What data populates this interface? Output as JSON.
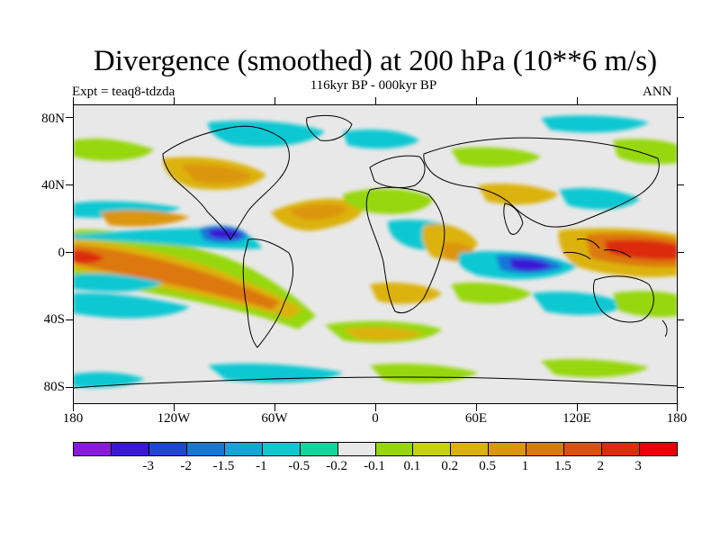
{
  "header": {
    "title": "Divergence (smoothed) at 200 hPa (10**6 m/s)",
    "subtitle": "116kyr BP - 000kyr BP",
    "left_label": "Expt = teaq8-tdzda",
    "right_label": "ANN"
  },
  "map": {
    "lat_labels": [
      "80N",
      "40N",
      "0",
      "40S",
      "80S"
    ],
    "lon_labels": [
      "180",
      "120W",
      "60W",
      "0",
      "60E",
      "120E",
      "180"
    ],
    "background_color": "#e8e8e8"
  },
  "colorbar": {
    "colors": [
      "#8a19e0",
      "#3a19d6",
      "#1e46d2",
      "#1478d6",
      "#10a6d8",
      "#10c8d2",
      "#10d89c",
      "#e8e8e8",
      "#96d70a",
      "#c6d20a",
      "#dcb20a",
      "#dc960a",
      "#dc780a",
      "#dc500a",
      "#dc2c0a",
      "#e6000a"
    ],
    "labels": [
      "-3",
      "-2",
      "-1.5",
      "-1",
      "-0.5",
      "-0.2",
      "-0.1",
      "0.1",
      "0.2",
      "0.5",
      "1",
      "1.5",
      "2",
      "3"
    ]
  }
}
